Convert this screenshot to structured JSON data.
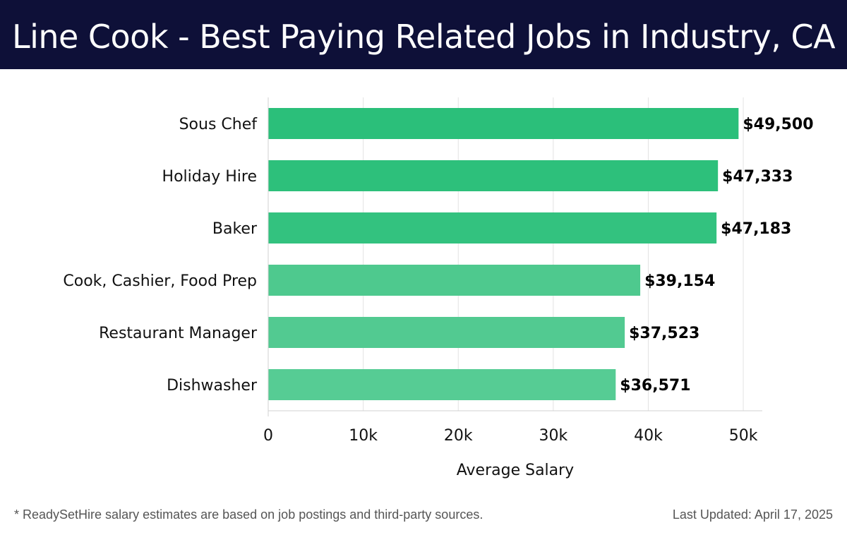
{
  "chart_data": {
    "type": "bar",
    "orientation": "horizontal",
    "title": "Line Cook - Best Paying Related Jobs in Industry, CA",
    "categories": [
      "Sous Chef",
      "Holiday Hire",
      "Baker",
      "Cook, Cashier, Food Prep",
      "Restaurant Manager",
      "Dishwasher"
    ],
    "values": [
      49500,
      47333,
      47183,
      39154,
      37523,
      36571
    ],
    "value_labels": [
      "$49,500",
      "$47,333",
      "$47,183",
      "$39,154",
      "$37,523",
      "$36,571"
    ],
    "bar_colors": [
      "#2bbf7a",
      "#2dc07b",
      "#33c27f",
      "#4ec98e",
      "#52ca91",
      "#56cc94"
    ],
    "xlabel": "Average Salary",
    "ylabel": "",
    "xlim": [
      0,
      52000
    ],
    "xticks": [
      0,
      10000,
      20000,
      30000,
      40000,
      50000
    ],
    "xtick_labels": [
      "0",
      "10k",
      "20k",
      "30k",
      "40k",
      "50k"
    ],
    "grid": true
  },
  "colors": {
    "header_bg": "#0e1038",
    "grid": "#e3e3e3"
  },
  "footer": {
    "note": "* ReadySetHire salary estimates are based on job postings and third-party sources.",
    "updated": "Last Updated: April 17, 2025"
  }
}
